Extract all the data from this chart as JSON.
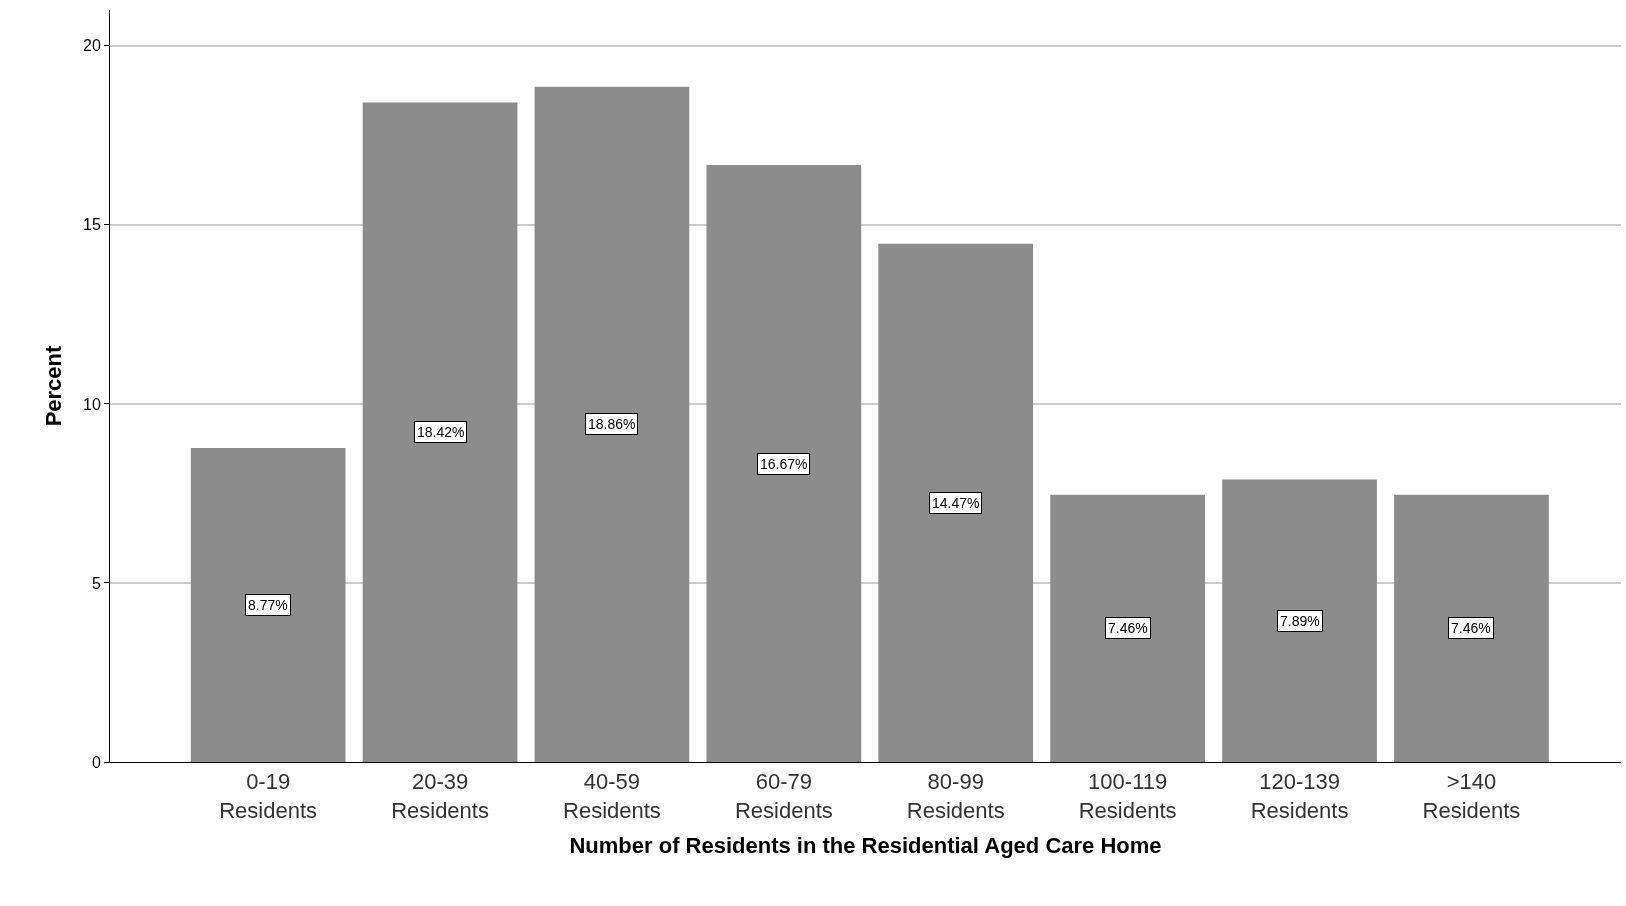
{
  "chart_data": {
    "type": "bar",
    "xlabel": "Number of Residents in the Residential Aged Care Home",
    "ylabel": "Percent",
    "categories": [
      "0-19 Residents",
      "20-39 Residents",
      "40-59 Residents",
      "60-79 Residents",
      "80-99 Residents",
      "100-119 Residents",
      "120-139 Residents",
      ">140 Residents"
    ],
    "values": [
      8.77,
      18.42,
      18.86,
      16.67,
      14.47,
      7.46,
      7.89,
      7.46
    ],
    "value_labels": [
      "8.77%",
      "18.42%",
      "18.86%",
      "16.67%",
      "14.47%",
      "7.46%",
      "7.89%",
      "7.46%"
    ],
    "color": "#8c8c8c",
    "ylim": [
      0,
      21
    ],
    "yticks": [
      0,
      5,
      10,
      15,
      20
    ],
    "grid": "y"
  }
}
